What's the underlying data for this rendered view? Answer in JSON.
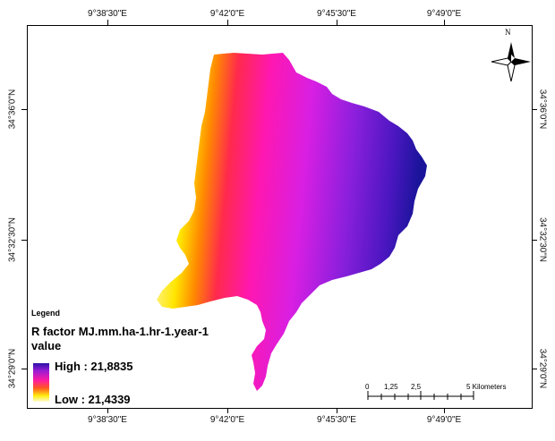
{
  "coordinates": {
    "top": [
      "9°38'30\"E",
      "9°42'0\"E",
      "9°45'30\"E",
      "9°49'0\"E"
    ],
    "bottom": [
      "9°38'30\"E",
      "9°42'0\"E",
      "9°45'30\"E",
      "9°49'0\"E"
    ],
    "left": [
      "34°36'0\"N",
      "34°32'30\"N",
      "34°29'0\"N"
    ],
    "right": [
      "34°36'0\"N",
      "34°32'30\"N",
      "34°29'0\"N"
    ]
  },
  "legend": {
    "title": "Legend",
    "factor_label": "R factor MJ.mm.ha-1.hr-1.year-1",
    "value_label": "value",
    "high": "High : 21,8835",
    "low": "Low : 21,4339",
    "ramp_colors": [
      "#2a14a8",
      "#9b1cd6",
      "#ff1aa0",
      "#ff5a1e",
      "#ffee10",
      "#fffbd0"
    ]
  },
  "north_arrow": {
    "label": "N",
    "icon": "north-arrow-icon"
  },
  "scale_bar": {
    "labels": [
      "0",
      "1,25",
      "2,5",
      "5 Kilometers"
    ]
  }
}
